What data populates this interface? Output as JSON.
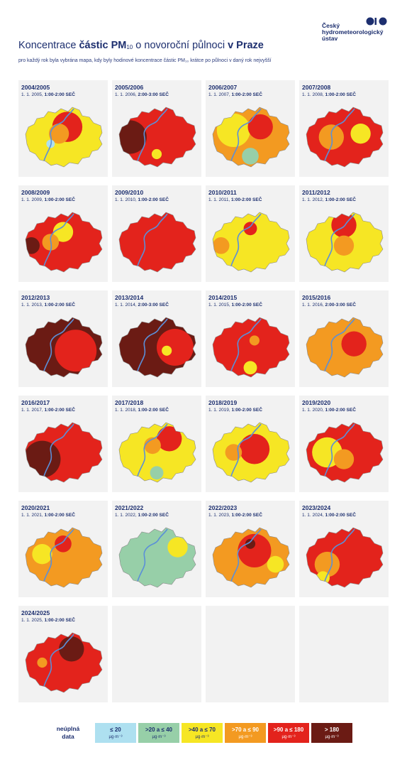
{
  "header": {
    "title_pre": "Koncentrace ",
    "title_bold1": "částic PM",
    "title_sub": "10",
    "title_mid": " o novoroční půlnoci ",
    "title_bold2": "v Praze",
    "subtitle": "pro každý rok byla vybrána mapa, kdy byly hodinové koncentrace částic PM₁₀ krátce po půlnoci v daný rok nejvyšší"
  },
  "logo": {
    "line1": "Český",
    "line2": "hydrometeorologický",
    "line3": "ústav",
    "color": "#1d2f6f"
  },
  "palette": {
    "c1": "#aee0f0",
    "c2": "#97cfa8",
    "c3": "#f6e624",
    "c4": "#f39a21",
    "c5": "#e3231c",
    "c6": "#6b1b14"
  },
  "panels": [
    {
      "season": "2004/2005",
      "date": "1. 1. 2005, ",
      "time": "1:00-2:00 SEČ",
      "base": "c3",
      "blobs": [
        [
          "c5",
          0.55,
          0.35,
          0.18
        ],
        [
          "c4",
          0.45,
          0.45,
          0.12
        ],
        [
          "c1",
          0.35,
          0.6,
          0.05
        ]
      ]
    },
    {
      "season": "2005/2006",
      "date": "1. 1. 2006, ",
      "time": "2:00-3:00 SEČ",
      "base": "c5",
      "blobs": [
        [
          "c6",
          0.18,
          0.5,
          0.2
        ],
        [
          "c3",
          0.5,
          0.75,
          0.06
        ]
      ]
    },
    {
      "season": "2006/2007",
      "date": "1. 1. 2007, ",
      "time": "1:00-2:00 SEČ",
      "base": "c4",
      "blobs": [
        [
          "c3",
          0.3,
          0.4,
          0.2
        ],
        [
          "c5",
          0.62,
          0.35,
          0.15
        ],
        [
          "c2",
          0.5,
          0.78,
          0.1
        ]
      ]
    },
    {
      "season": "2007/2008",
      "date": "1. 1. 2008, ",
      "time": "1:00-2:00 SEČ",
      "base": "c5",
      "blobs": [
        [
          "c4",
          0.35,
          0.5,
          0.15
        ],
        [
          "c3",
          0.7,
          0.45,
          0.12
        ]
      ]
    },
    {
      "season": "2008/2009",
      "date": "1. 1. 2009, ",
      "time": "1:00-2:00 SEČ",
      "base": "c5",
      "blobs": [
        [
          "c6",
          0.12,
          0.55,
          0.1
        ],
        [
          "c3",
          0.5,
          0.35,
          0.12
        ],
        [
          "c4",
          0.35,
          0.5,
          0.1
        ]
      ]
    },
    {
      "season": "2009/2010",
      "date": "1. 1. 2010, ",
      "time": "1:00-2:00 SEČ",
      "base": "c5",
      "blobs": []
    },
    {
      "season": "2010/2011",
      "date": "1. 1. 2011, ",
      "time": "1:00-2:00 SEČ",
      "base": "c3",
      "blobs": [
        [
          "c4",
          0.15,
          0.55,
          0.1
        ],
        [
          "c5",
          0.5,
          0.3,
          0.08
        ]
      ]
    },
    {
      "season": "2011/2012",
      "date": "1. 1. 2012, ",
      "time": "1:00-2:00 SEČ",
      "base": "c3",
      "blobs": [
        [
          "c5",
          0.5,
          0.25,
          0.15
        ],
        [
          "c4",
          0.5,
          0.55,
          0.12
        ]
      ]
    },
    {
      "season": "2012/2013",
      "date": "1. 1. 2013, ",
      "time": "1:00-2:00 SEČ",
      "base": "c6",
      "blobs": [
        [
          "c5",
          0.65,
          0.55,
          0.25
        ]
      ]
    },
    {
      "season": "2013/2014",
      "date": "1. 1. 2014, ",
      "time": "2:00-3:00 SEČ",
      "base": "c6",
      "blobs": [
        [
          "c5",
          0.72,
          0.5,
          0.22
        ],
        [
          "c3",
          0.62,
          0.55,
          0.06
        ]
      ]
    },
    {
      "season": "2014/2015",
      "date": "1. 1. 2015, ",
      "time": "1:00-2:00 SEČ",
      "base": "c5",
      "blobs": [
        [
          "c3",
          0.5,
          0.8,
          0.08
        ],
        [
          "c4",
          0.55,
          0.4,
          0.06
        ]
      ]
    },
    {
      "season": "2015/2016",
      "date": "1. 1. 2016, ",
      "time": "2:00-3:00 SEČ",
      "base": "c4",
      "blobs": [
        [
          "c5",
          0.62,
          0.45,
          0.15
        ]
      ]
    },
    {
      "season": "2016/2017",
      "date": "1. 1. 2017, ",
      "time": "1:00-2:00 SEČ",
      "base": "c5",
      "blobs": [
        [
          "c6",
          0.25,
          0.6,
          0.22
        ]
      ]
    },
    {
      "season": "2017/2018",
      "date": "1. 1. 2018, ",
      "time": "1:00-2:00 SEČ",
      "base": "c3",
      "blobs": [
        [
          "c5",
          0.65,
          0.3,
          0.15
        ],
        [
          "c4",
          0.45,
          0.4,
          0.1
        ],
        [
          "c2",
          0.5,
          0.8,
          0.08
        ]
      ]
    },
    {
      "season": "2018/2019",
      "date": "1. 1. 2019, ",
      "time": "1:00-2:00 SEČ",
      "base": "c3",
      "blobs": [
        [
          "c5",
          0.55,
          0.45,
          0.18
        ],
        [
          "c4",
          0.3,
          0.5,
          0.1
        ]
      ]
    },
    {
      "season": "2019/2020",
      "date": "1. 1. 2020, ",
      "time": "1:00-2:00 SEČ",
      "base": "c5",
      "blobs": [
        [
          "c3",
          0.3,
          0.5,
          0.18
        ],
        [
          "c4",
          0.5,
          0.6,
          0.12
        ]
      ]
    },
    {
      "season": "2020/2021",
      "date": "1. 1. 2021, ",
      "time": "1:00-2:00 SEČ",
      "base": "c4",
      "blobs": [
        [
          "c3",
          0.25,
          0.45,
          0.12
        ],
        [
          "c5",
          0.5,
          0.3,
          0.1
        ]
      ]
    },
    {
      "season": "2021/2022",
      "date": "1. 1. 2022, ",
      "time": "1:00-2:00 SEČ",
      "base": "c2",
      "blobs": [
        [
          "c3",
          0.75,
          0.35,
          0.12
        ]
      ]
    },
    {
      "season": "2022/2023",
      "date": "1. 1. 2023, ",
      "time": "1:00-2:00 SEČ",
      "base": "c4",
      "blobs": [
        [
          "c5",
          0.55,
          0.4,
          0.2
        ],
        [
          "c6",
          0.5,
          0.3,
          0.06
        ],
        [
          "c3",
          0.8,
          0.6,
          0.1
        ]
      ]
    },
    {
      "season": "2023/2024",
      "date": "1. 1. 2024, ",
      "time": "1:00-2:00 SEČ",
      "base": "c5",
      "blobs": [
        [
          "c4",
          0.3,
          0.6,
          0.15
        ],
        [
          "c3",
          0.25,
          0.8,
          0.08
        ]
      ]
    },
    {
      "season": "2024/2025",
      "date": "1. 1. 2025, ",
      "time": "1:00-2:00 SEČ",
      "base": "c5",
      "blobs": [
        [
          "c6",
          0.6,
          0.3,
          0.15
        ],
        [
          "c4",
          0.25,
          0.5,
          0.06
        ]
      ]
    }
  ],
  "legend": {
    "label_line1": "neúplná",
    "label_line2": "data",
    "unit": "µg·m⁻³",
    "items": [
      {
        "range": "≤ 20",
        "color": "#aee0f0",
        "text": "#1d2f6f"
      },
      {
        "range": ">20 a ≤ 40",
        "color": "#97cfa8",
        "text": "#1d2f6f"
      },
      {
        "range": ">40 a ≤ 70",
        "color": "#f6e624",
        "text": "#1d2f6f"
      },
      {
        "range": ">70 a ≤ 90",
        "color": "#f39a21",
        "text": "#ffffff"
      },
      {
        "range": ">90 a ≤ 180",
        "color": "#e3231c",
        "text": "#ffffff"
      },
      {
        "range": "> 180",
        "color": "#6b1b14",
        "text": "#ffffff"
      }
    ]
  }
}
